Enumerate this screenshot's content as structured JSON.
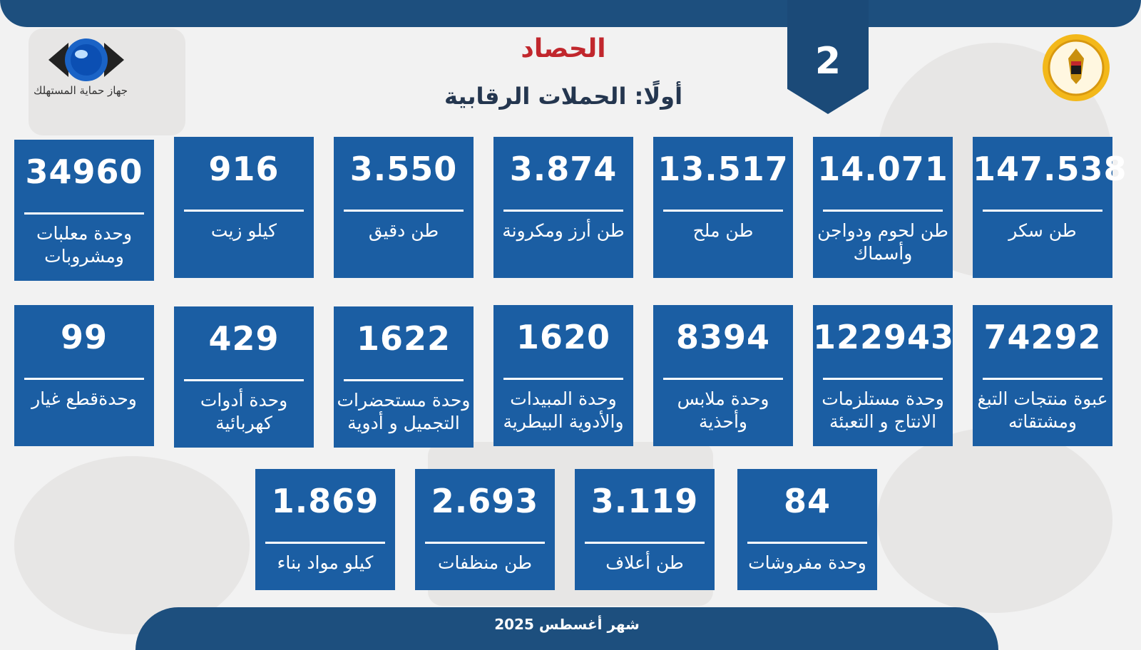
{
  "header": {
    "page_number": "2",
    "title": "الحصاد",
    "subtitle": "أولًا: الحملات الرقابية",
    "logo_caption": "جهاز حماية المستهلك",
    "seal_name": "egypt-cabinet-seal"
  },
  "colors": {
    "card_blue": "#1b5ea3",
    "band_blue": "#1d4f7e",
    "title_red": "#c1272d"
  },
  "cards": [
    {
      "value": "147.538",
      "label": "طن سكر"
    },
    {
      "value": "14.071",
      "label": "طن لحوم ودواجن وأسماك"
    },
    {
      "value": "13.517",
      "label": "طن ملح"
    },
    {
      "value": "3.874",
      "label": "طن أرز ومكرونة"
    },
    {
      "value": "3.550",
      "label": "طن دقيق"
    },
    {
      "value": "916",
      "label": "كيلو زيت"
    },
    {
      "value": "34960",
      "label": "وحدة معلبات ومشروبات"
    },
    {
      "value": "74292",
      "label": "عبوة منتجات التبغ ومشتقاته"
    },
    {
      "value": "122943",
      "label": "وحدة مستلزمات الانتاج و التعبئة"
    },
    {
      "value": "8394",
      "label": "وحدة ملابس وأحذية"
    },
    {
      "value": "1620",
      "label": "وحدة المبيدات والأدوية البيطرية"
    },
    {
      "value": "1622",
      "label": "وحدة مستحضرات التجميل و أدوية"
    },
    {
      "value": "429",
      "label": "وحدة أدوات كهربائية"
    },
    {
      "value": "99",
      "label": "وحدةقطع غيار"
    },
    {
      "value": "84",
      "label": "وحدة مفروشات"
    },
    {
      "value": "3.119",
      "label": "طن أعلاف"
    },
    {
      "value": "2.693",
      "label": "طن منظفات"
    },
    {
      "value": "1.869",
      "label": "كيلو مواد بناء"
    }
  ],
  "footer": {
    "text": "شهر أغسطس 2025"
  }
}
